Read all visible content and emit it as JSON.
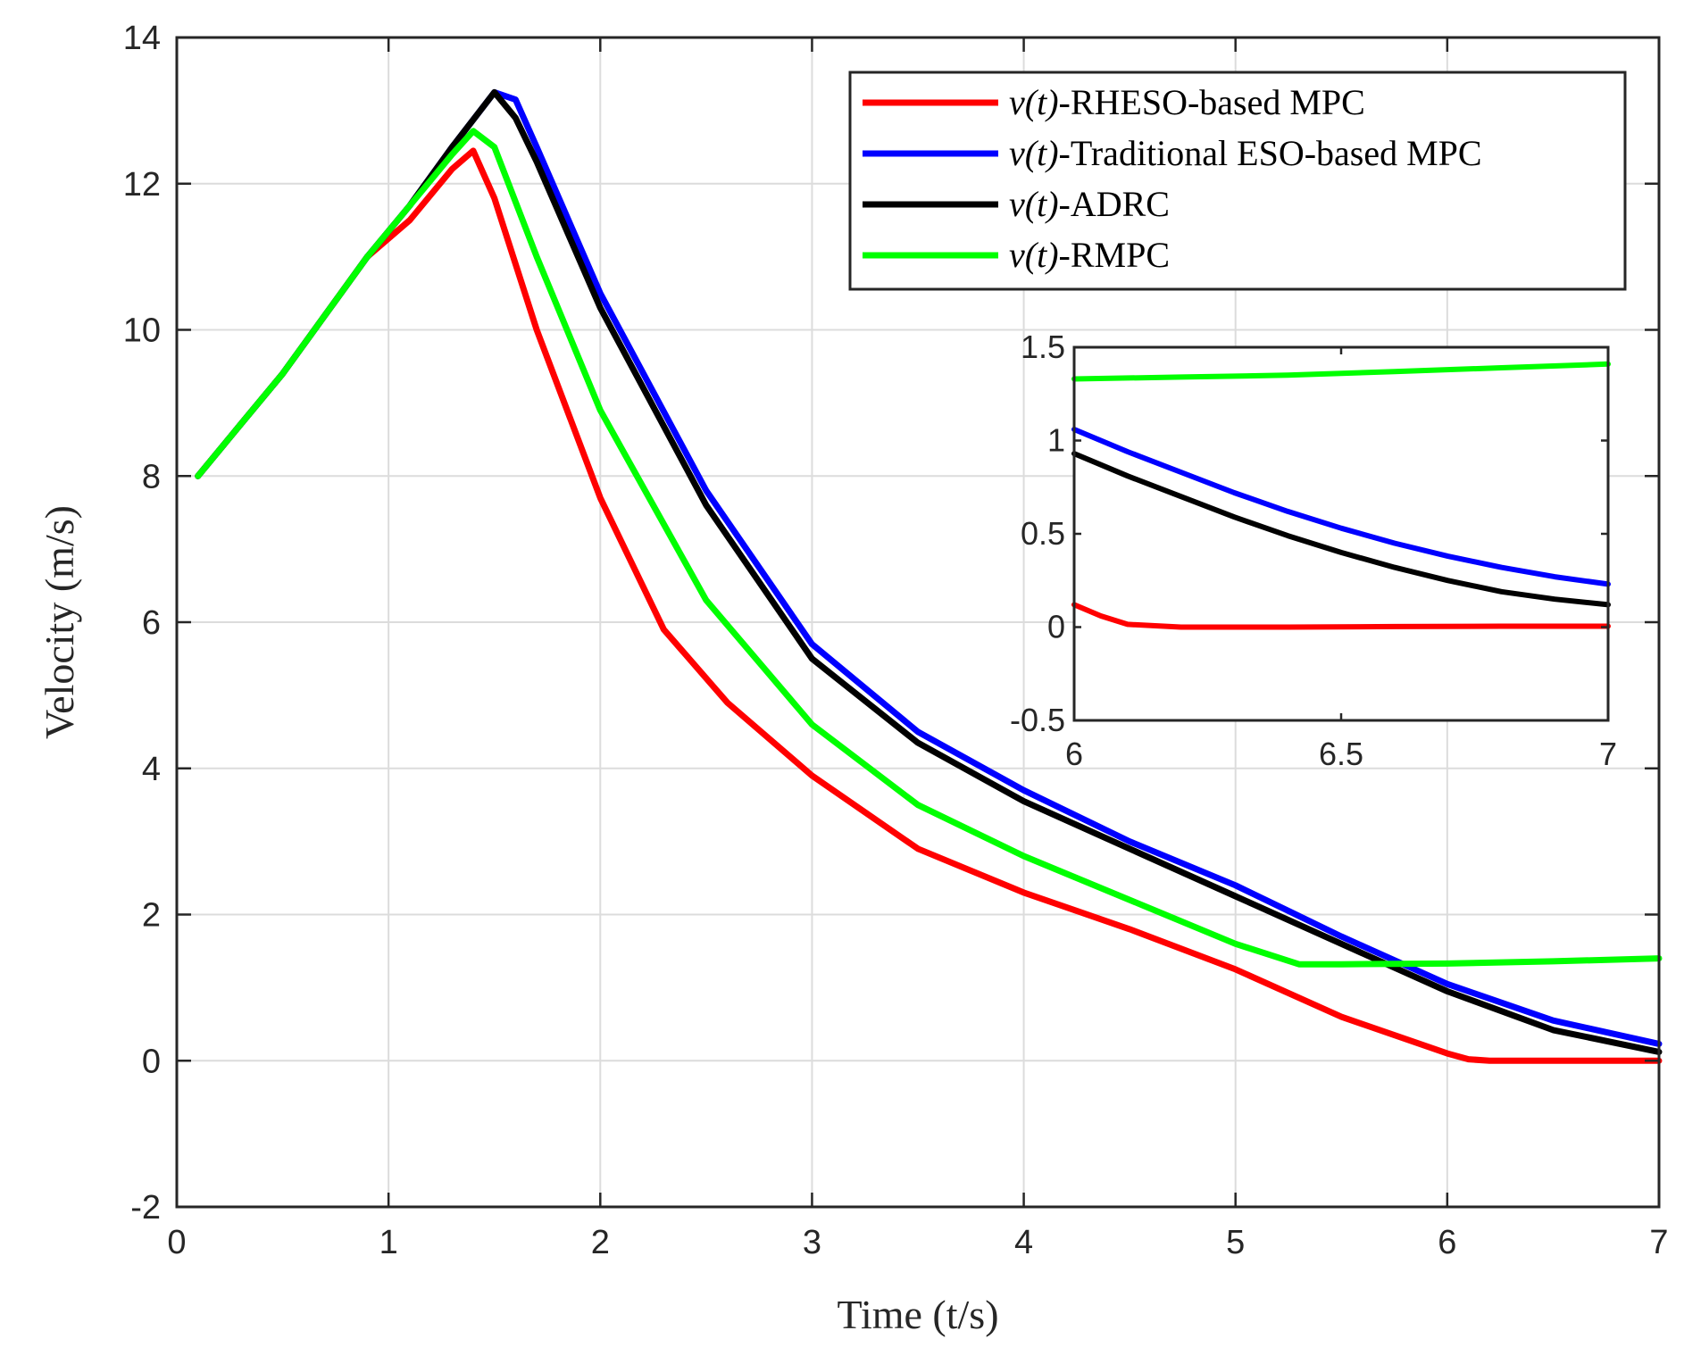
{
  "chart_data": [
    {
      "type": "line",
      "title": "",
      "xlabel": "Time (t/s)",
      "ylabel": "Velocity (m/s)",
      "xlim": [
        0,
        7
      ],
      "ylim": [
        -2,
        14
      ],
      "xticks": [
        "0",
        "1",
        "2",
        "3",
        "4",
        "5",
        "6",
        "7"
      ],
      "yticks": [
        "-2",
        "0",
        "2",
        "4",
        "6",
        "8",
        "10",
        "12",
        "14"
      ],
      "grid": true,
      "legend_position": "top-right",
      "series": [
        {
          "name_prefix": "v(t)",
          "name": "-RHESO-based MPC",
          "color": "#ff0000",
          "x": [
            0.1,
            0.3,
            0.5,
            0.7,
            0.9,
            1.1,
            1.3,
            1.4,
            1.5,
            1.7,
            2.0,
            2.3,
            2.6,
            3.0,
            3.5,
            4.0,
            4.5,
            5.0,
            5.5,
            6.0,
            6.1,
            6.2,
            6.5,
            7.0
          ],
          "y": [
            8.0,
            8.7,
            9.4,
            10.2,
            11.0,
            11.5,
            12.2,
            12.45,
            11.8,
            10.0,
            7.7,
            5.9,
            4.9,
            3.9,
            2.9,
            2.3,
            1.8,
            1.25,
            0.6,
            0.1,
            0.02,
            0.0,
            0.0,
            0.0
          ]
        },
        {
          "name_prefix": "v(t)",
          "name": "-Traditional ESO-based MPC",
          "color": "#0000ff",
          "x": [
            0.1,
            0.3,
            0.5,
            0.7,
            0.9,
            1.1,
            1.3,
            1.5,
            1.6,
            1.7,
            2.0,
            2.5,
            3.0,
            3.5,
            4.0,
            4.5,
            5.0,
            5.5,
            6.0,
            6.5,
            7.0
          ],
          "y": [
            8.0,
            8.7,
            9.4,
            10.2,
            11.0,
            11.7,
            12.5,
            13.25,
            13.15,
            12.5,
            10.5,
            7.8,
            5.7,
            4.5,
            3.7,
            3.0,
            2.4,
            1.7,
            1.05,
            0.55,
            0.23
          ]
        },
        {
          "name_prefix": "v(t)",
          "name": "-ADRC",
          "color": "#000000",
          "x": [
            0.1,
            0.3,
            0.5,
            0.7,
            0.9,
            1.1,
            1.3,
            1.5,
            1.6,
            1.7,
            2.0,
            2.5,
            3.0,
            3.5,
            4.0,
            4.5,
            5.0,
            5.5,
            6.0,
            6.5,
            7.0
          ],
          "y": [
            8.0,
            8.7,
            9.4,
            10.2,
            11.0,
            11.7,
            12.5,
            13.25,
            12.9,
            12.3,
            10.3,
            7.6,
            5.5,
            4.35,
            3.55,
            2.9,
            2.25,
            1.6,
            0.95,
            0.42,
            0.12
          ]
        },
        {
          "name_prefix": "v(t)",
          "name": "-RMPC",
          "color": "#00ff00",
          "x": [
            0.1,
            0.3,
            0.5,
            0.7,
            0.9,
            1.1,
            1.3,
            1.4,
            1.5,
            1.7,
            2.0,
            2.5,
            3.0,
            3.5,
            4.0,
            4.5,
            5.0,
            5.3,
            5.5,
            6.0,
            6.5,
            7.0
          ],
          "y": [
            8.0,
            8.7,
            9.4,
            10.2,
            11.0,
            11.7,
            12.4,
            12.72,
            12.5,
            11.0,
            8.9,
            6.3,
            4.6,
            3.5,
            2.8,
            2.2,
            1.6,
            1.32,
            1.32,
            1.33,
            1.36,
            1.4
          ]
        }
      ]
    },
    {
      "type": "line",
      "title": "",
      "xlabel": "",
      "ylabel": "",
      "xlim": [
        6,
        7
      ],
      "ylim": [
        -0.5,
        1.5
      ],
      "xticks": [
        "6",
        "6.5",
        "7"
      ],
      "yticks": [
        "-0.5",
        "0",
        "0.5",
        "1",
        "1.5"
      ],
      "grid": false,
      "series": [
        {
          "name": "RHESO-based MPC",
          "color": "#ff0000",
          "x": [
            6.0,
            6.05,
            6.1,
            6.2,
            6.4,
            6.6,
            6.8,
            7.0
          ],
          "y": [
            0.12,
            0.06,
            0.015,
            0.0,
            0.0,
            0.003,
            0.005,
            0.005
          ]
        },
        {
          "name": "Traditional ESO-based MPC",
          "color": "#0000ff",
          "x": [
            6.0,
            6.1,
            6.2,
            6.3,
            6.4,
            6.5,
            6.6,
            6.7,
            6.8,
            6.9,
            7.0
          ],
          "y": [
            1.06,
            0.94,
            0.83,
            0.72,
            0.62,
            0.53,
            0.45,
            0.38,
            0.32,
            0.27,
            0.23
          ]
        },
        {
          "name": "ADRC",
          "color": "#000000",
          "x": [
            6.0,
            6.1,
            6.2,
            6.3,
            6.4,
            6.5,
            6.6,
            6.7,
            6.8,
            6.9,
            7.0
          ],
          "y": [
            0.93,
            0.81,
            0.7,
            0.59,
            0.49,
            0.4,
            0.32,
            0.25,
            0.19,
            0.15,
            0.12
          ]
        },
        {
          "name": "RMPC",
          "color": "#00ff00",
          "x": [
            6.0,
            6.2,
            6.4,
            6.6,
            6.8,
            7.0
          ],
          "y": [
            1.33,
            1.34,
            1.35,
            1.37,
            1.39,
            1.41
          ]
        }
      ]
    }
  ]
}
